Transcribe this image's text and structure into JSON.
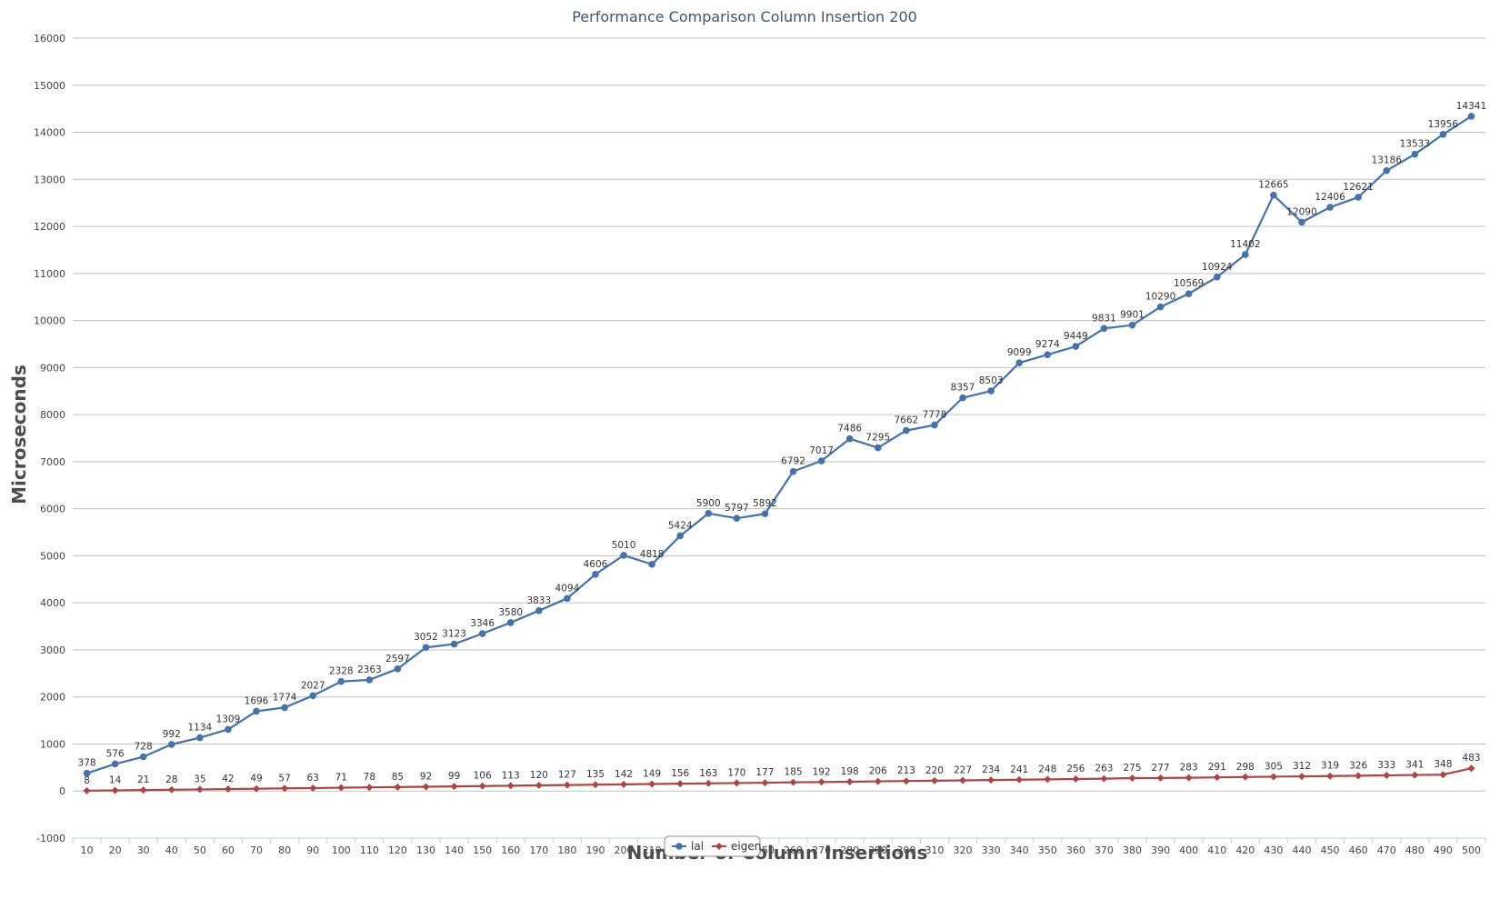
{
  "chart_data": {
    "type": "line",
    "title": "Performance Comparison Column Insertion 200",
    "xlabel": "Number of Column Insertions",
    "ylabel": "Microseconds",
    "ylim": [
      -1000,
      16000
    ],
    "yticks": [
      -1000,
      0,
      1000,
      2000,
      3000,
      4000,
      5000,
      6000,
      7000,
      8000,
      9000,
      10000,
      11000,
      12000,
      13000,
      14000,
      15000,
      16000
    ],
    "grid": true,
    "legend_position": "bottom-center",
    "categories": [
      10,
      20,
      30,
      40,
      50,
      60,
      70,
      80,
      90,
      100,
      110,
      120,
      130,
      140,
      150,
      160,
      170,
      180,
      190,
      200,
      210,
      220,
      230,
      240,
      250,
      260,
      270,
      280,
      290,
      300,
      310,
      320,
      330,
      340,
      350,
      360,
      370,
      380,
      390,
      400,
      410,
      420,
      430,
      440,
      450,
      460,
      470,
      480,
      490,
      500
    ],
    "series": [
      {
        "name": "lal",
        "color": "#4572a7",
        "marker": "circle",
        "values": [
          378,
          576,
          728,
          992,
          1134,
          1309,
          1696,
          1774,
          2027,
          2328,
          2363,
          2597,
          3052,
          3123,
          3346,
          3580,
          3833,
          4094,
          4606,
          5010,
          4818,
          5424,
          5900,
          5797,
          5892,
          6792,
          7017,
          7486,
          7295,
          7662,
          7778,
          8357,
          8503,
          9099,
          9274,
          9449,
          9831,
          9901,
          10290,
          10569,
          10924,
          11402,
          12665,
          12090,
          12406,
          12621,
          13186,
          13533,
          13956,
          14341
        ]
      },
      {
        "name": "eigen",
        "color": "#aa4643",
        "marker": "diamond",
        "values": [
          8,
          14,
          21,
          28,
          35,
          42,
          49,
          57,
          63,
          71,
          78,
          85,
          92,
          99,
          106,
          113,
          120,
          127,
          135,
          142,
          149,
          156,
          163,
          170,
          177,
          185,
          192,
          198,
          206,
          213,
          220,
          227,
          234,
          241,
          248,
          256,
          263,
          275,
          277,
          283,
          291,
          298,
          305,
          312,
          319,
          326,
          333,
          341,
          348,
          483
        ]
      }
    ]
  }
}
